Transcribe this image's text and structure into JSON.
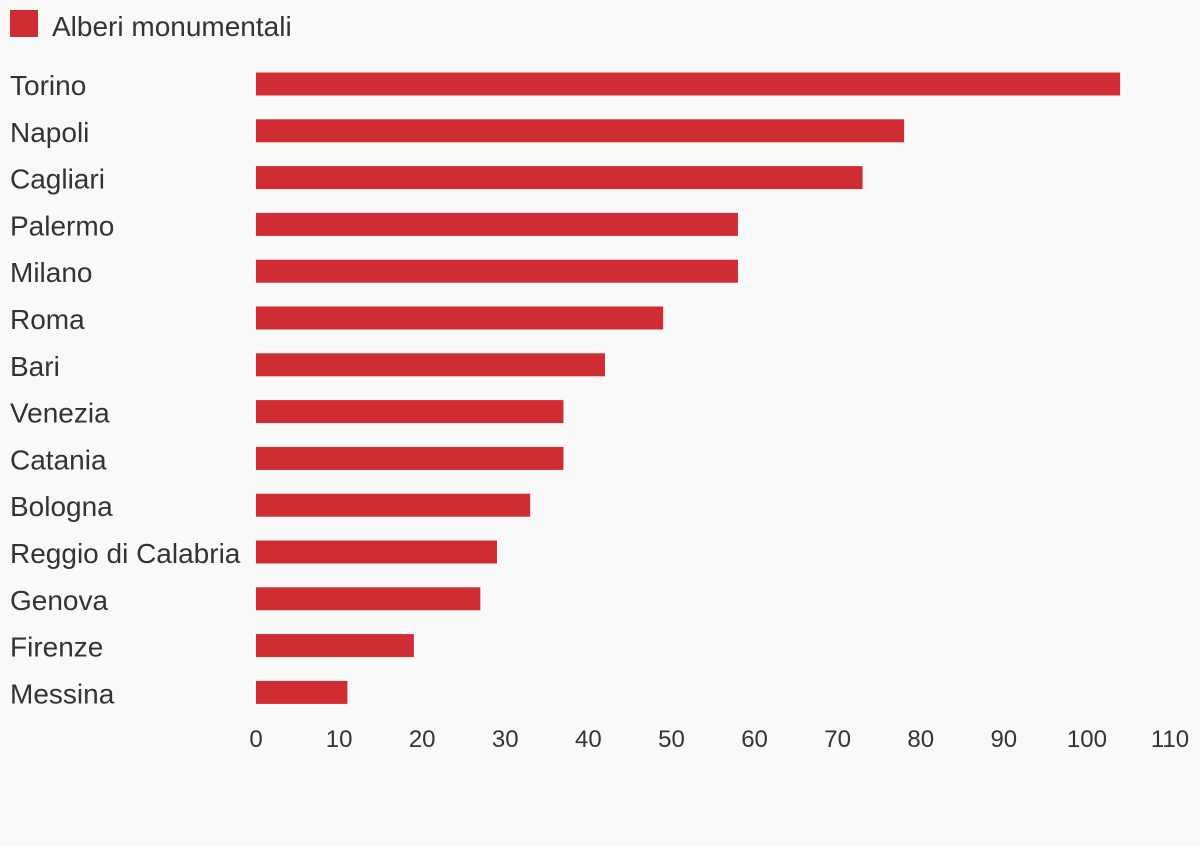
{
  "chart_data": {
    "type": "bar",
    "orientation": "horizontal",
    "categories": [
      "Torino",
      "Napoli",
      "Cagliari",
      "Palermo",
      "Milano",
      "Roma",
      "Bari",
      "Venezia",
      "Catania",
      "Bologna",
      "Reggio di Calabria",
      "Genova",
      "Firenze",
      "Messina"
    ],
    "series": [
      {
        "name": "Alberi monumentali",
        "values": [
          104,
          78,
          73,
          58,
          58,
          49,
          42,
          37,
          37,
          33,
          29,
          27,
          19,
          11
        ]
      }
    ],
    "xlim": [
      0,
      110
    ],
    "xticks": [
      0,
      10,
      20,
      30,
      40,
      50,
      60,
      70,
      80,
      90,
      100,
      110
    ],
    "grid": false,
    "legend": "top-left",
    "colors": {
      "bar": "#d02c33",
      "text": "#333333",
      "background": "#f9f9f9"
    }
  }
}
